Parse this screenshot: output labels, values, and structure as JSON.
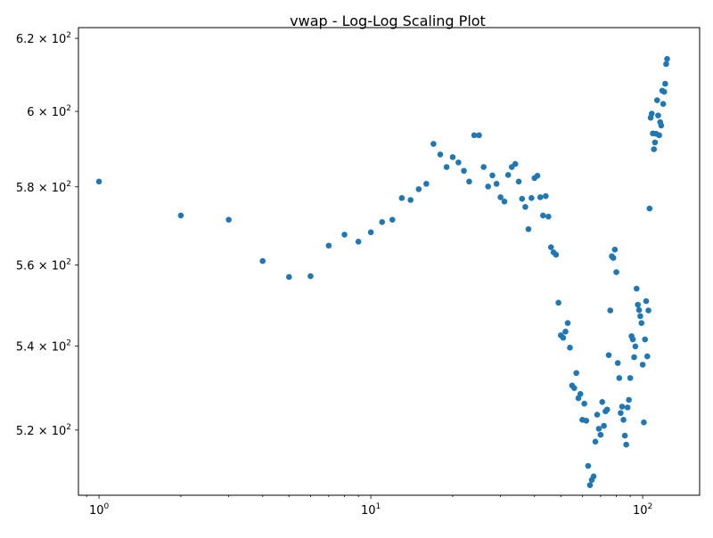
{
  "chart_data": {
    "type": "scatter",
    "title": "vwap  - Log-Log Scaling Plot",
    "xlabel": "",
    "ylabel": "",
    "xscale": "log",
    "yscale": "log",
    "xlim": [
      0.84,
      162
    ],
    "ylim": [
      505,
      623
    ],
    "grid": false,
    "legend": "none",
    "marker_color": "#1f77b4",
    "x_ticks": [
      {
        "value": 1,
        "base": "10",
        "exp": "0"
      },
      {
        "value": 10,
        "base": "10",
        "exp": "1"
      },
      {
        "value": 100,
        "base": "10",
        "exp": "2"
      }
    ],
    "y_ticks": [
      {
        "value": 520,
        "mantissa": "5.2",
        "exp": "2"
      },
      {
        "value": 540,
        "mantissa": "5.4",
        "exp": "2"
      },
      {
        "value": 560,
        "mantissa": "5.6",
        "exp": "2"
      },
      {
        "value": 580,
        "mantissa": "5.8",
        "exp": "2"
      },
      {
        "value": 600,
        "mantissa": "6",
        "exp": "2"
      },
      {
        "value": 620,
        "mantissa": "6.2",
        "exp": "2"
      }
    ],
    "points": [
      [
        1,
        581.4
      ],
      [
        2,
        572.6
      ],
      [
        3,
        571.5
      ],
      [
        4,
        561.0
      ],
      [
        5,
        557.0
      ],
      [
        6,
        557.2
      ],
      [
        7,
        564.9
      ],
      [
        8,
        567.7
      ],
      [
        9,
        565.9
      ],
      [
        10,
        568.3
      ],
      [
        11,
        570.9
      ],
      [
        12,
        571.5
      ],
      [
        13,
        577.1
      ],
      [
        14,
        576.6
      ],
      [
        15,
        579.4
      ],
      [
        16,
        580.8
      ],
      [
        17,
        591.3
      ],
      [
        18,
        588.5
      ],
      [
        19,
        585.2
      ],
      [
        20,
        587.8
      ],
      [
        21,
        586.4
      ],
      [
        22,
        584.2
      ],
      [
        23,
        581.4
      ],
      [
        24,
        593.6
      ],
      [
        25,
        593.6
      ],
      [
        26,
        585.2
      ],
      [
        27,
        580.1
      ],
      [
        28,
        583.0
      ],
      [
        29,
        580.8
      ],
      [
        30,
        577.3
      ],
      [
        31,
        576.2
      ],
      [
        32,
        583.1
      ],
      [
        33,
        585.2
      ],
      [
        34,
        586.0
      ],
      [
        35,
        581.4
      ],
      [
        36,
        576.9
      ],
      [
        37,
        574.8
      ],
      [
        38,
        569.1
      ],
      [
        39,
        577.1
      ],
      [
        40,
        582.3
      ],
      [
        41,
        582.9
      ],
      [
        42,
        577.3
      ],
      [
        43,
        572.6
      ],
      [
        44,
        577.6
      ],
      [
        45,
        572.3
      ],
      [
        46,
        564.5
      ],
      [
        47,
        563.2
      ],
      [
        48,
        562.6
      ],
      [
        49,
        550.6
      ],
      [
        50,
        542.6
      ],
      [
        51,
        542.0
      ],
      [
        52,
        543.5
      ],
      [
        53,
        545.6
      ],
      [
        54,
        539.6
      ],
      [
        55,
        530.5
      ],
      [
        56,
        529.9
      ],
      [
        57,
        533.5
      ],
      [
        58,
        527.5
      ],
      [
        59,
        528.5
      ],
      [
        60,
        522.4
      ],
      [
        61,
        526.2
      ],
      [
        62,
        522.2
      ],
      [
        63,
        511.7
      ],
      [
        64,
        507.3
      ],
      [
        65,
        508.5
      ],
      [
        66,
        509.3
      ],
      [
        67,
        517.3
      ],
      [
        68,
        523.6
      ],
      [
        69,
        520.3
      ],
      [
        70,
        518.9
      ],
      [
        71,
        526.6
      ],
      [
        72,
        521.0
      ],
      [
        73,
        524.4
      ],
      [
        74,
        524.8
      ],
      [
        75,
        537.8
      ],
      [
        76,
        548.7
      ],
      [
        77,
        562.2
      ],
      [
        78,
        561.8
      ],
      [
        79,
        563.9
      ],
      [
        80,
        558.2
      ],
      [
        81,
        535.9
      ],
      [
        82,
        532.3
      ],
      [
        83,
        524.0
      ],
      [
        84,
        525.5
      ],
      [
        85,
        522.4
      ],
      [
        86,
        518.7
      ],
      [
        87,
        516.6
      ],
      [
        88,
        525.3
      ],
      [
        89,
        527.1
      ],
      [
        90,
        532.3
      ],
      [
        91,
        542.4
      ],
      [
        92,
        541.6
      ],
      [
        93,
        537.3
      ],
      [
        94,
        539.9
      ],
      [
        95,
        554.1
      ],
      [
        96,
        550.1
      ],
      [
        97,
        548.8
      ],
      [
        98,
        547.3
      ],
      [
        99,
        545.6
      ],
      [
        100,
        535.5
      ],
      [
        101,
        521.8
      ],
      [
        102,
        541.6
      ],
      [
        103,
        551.0
      ],
      [
        104,
        537.5
      ],
      [
        105,
        548.7
      ],
      [
        106,
        574.4
      ],
      [
        107,
        598.3
      ],
      [
        108,
        599.4
      ],
      [
        109,
        594.1
      ],
      [
        110,
        589.9
      ],
      [
        111,
        591.7
      ],
      [
        112,
        594.0
      ],
      [
        113,
        603.0
      ],
      [
        114,
        598.9
      ],
      [
        115,
        593.6
      ],
      [
        116,
        597.1
      ],
      [
        117,
        596.2
      ],
      [
        118,
        605.6
      ],
      [
        119,
        602.0
      ],
      [
        120,
        605.3
      ],
      [
        121,
        607.5
      ],
      [
        122,
        612.9
      ],
      [
        123,
        614.3
      ]
    ]
  }
}
